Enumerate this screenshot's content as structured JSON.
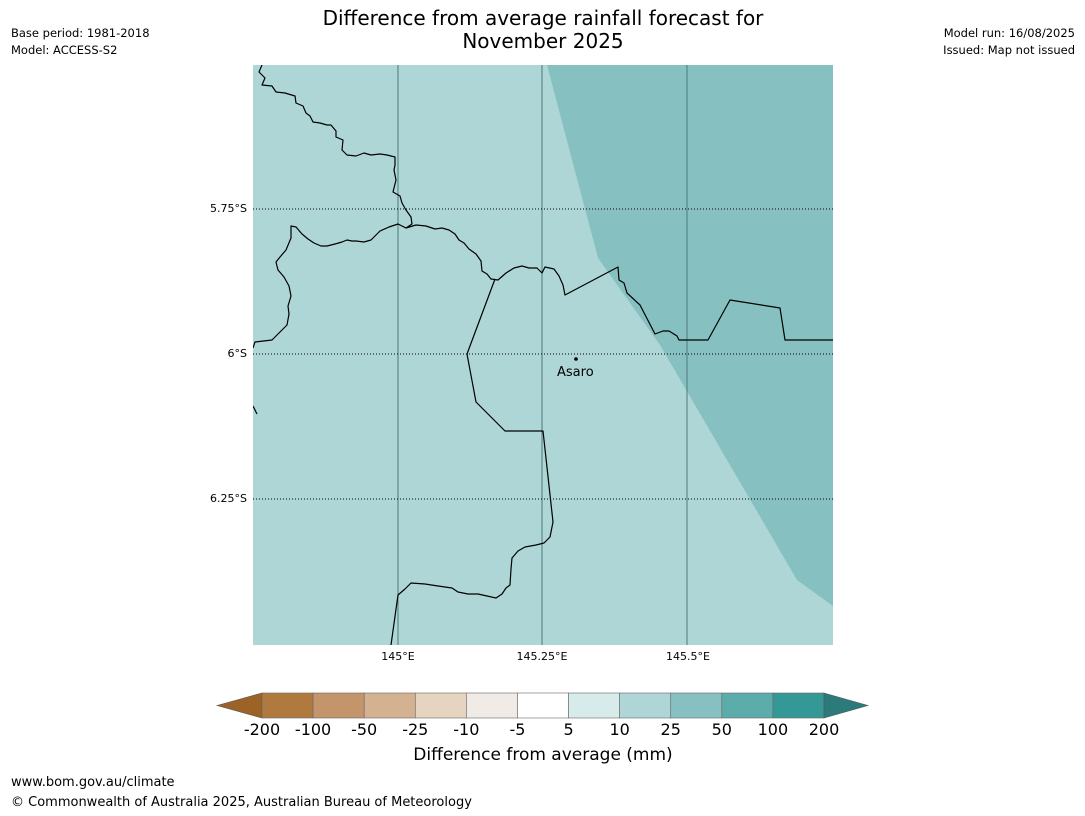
{
  "header": {
    "title_line1": "Difference from average rainfall forecast for",
    "title_line2": "November 2025",
    "base_period": "Base period: 1981-2018",
    "model": "Model: ACCESS-S2",
    "model_run": "Model run: 16/08/2025",
    "issued": "Issued: Map not issued"
  },
  "map": {
    "lat_labels": [
      "5.75°S",
      "6°S",
      "6.25°S"
    ],
    "lon_labels": [
      "145°E",
      "145.25°E",
      "145.5°E"
    ],
    "place": "Asaro",
    "colors": {
      "category_5_10": "#aed6d6",
      "category_10_25": "#87c0c0"
    }
  },
  "legend": {
    "ticks": [
      "-200",
      "-100",
      "-50",
      "-25",
      "-10",
      "-5",
      "5",
      "10",
      "25",
      "50",
      "100",
      "200"
    ],
    "colors": [
      "#9c6226",
      "#b07a3f",
      "#c4956b",
      "#d4b191",
      "#e6d3c0",
      "#f0ebe6",
      "#ffffff",
      "#d6ebea",
      "#aed6d6",
      "#87c0c0",
      "#5bacab",
      "#349896",
      "#2a7b79"
    ],
    "label": "Difference from average (mm)"
  },
  "footer": {
    "url": "www.bom.gov.au/climate",
    "copyright": "© Commonwealth of Australia 2025, Australian Bureau of Meteorology"
  }
}
